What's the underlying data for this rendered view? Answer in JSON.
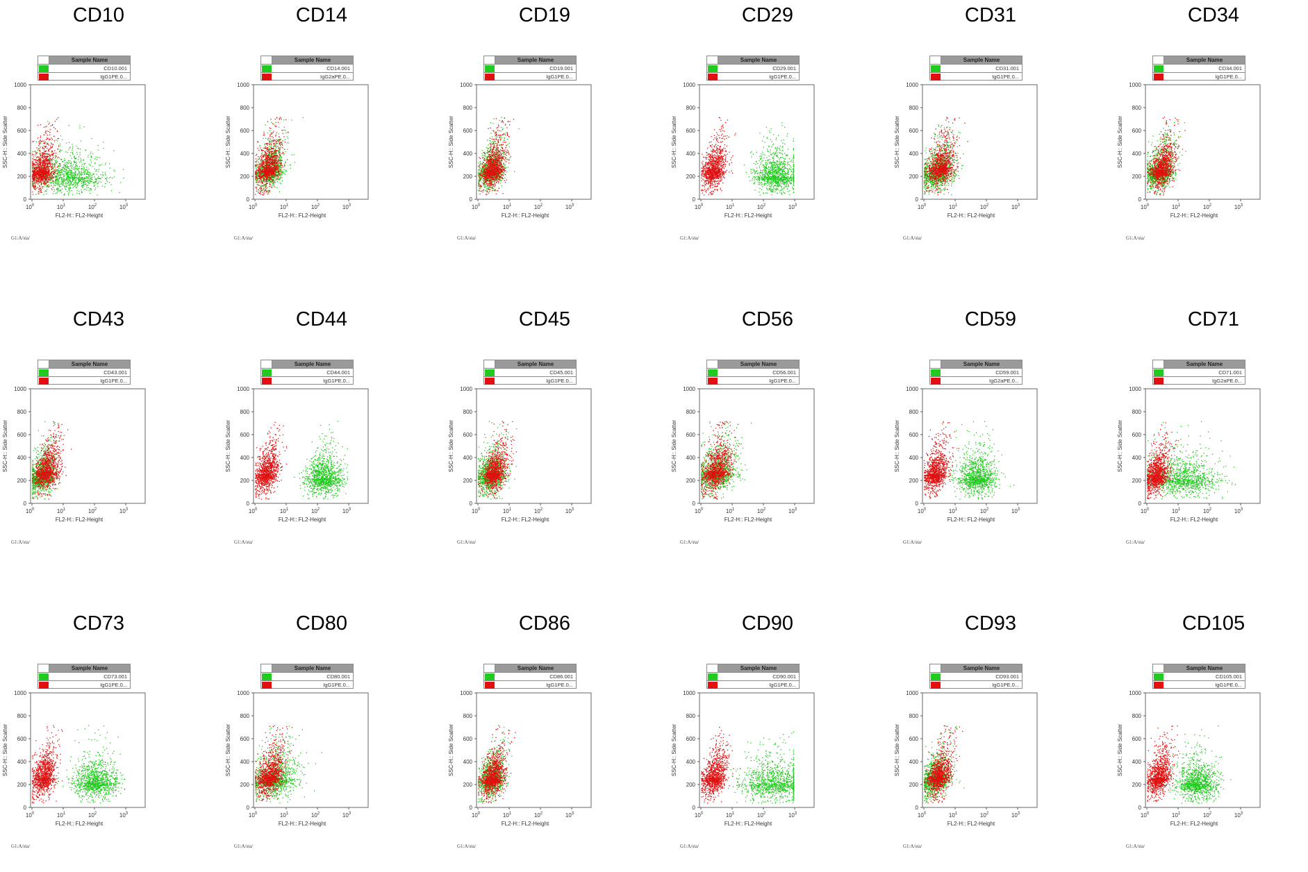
{
  "colors": {
    "positive": "#22c91e",
    "isotype": "#e01010"
  },
  "common": {
    "legend_header": "Sample Name",
    "xlabel": "FL2-H:: FL2-Height",
    "ylabel": "SSC-H:: Side Scatter",
    "y_ticks": [
      "0",
      "200",
      "400",
      "600",
      "800",
      "1000"
    ],
    "x_ticks": [
      "10",
      "10",
      "10",
      "10"
    ],
    "x_tick_exponents": [
      "0",
      "1",
      "2",
      "3"
    ],
    "footer": "G1:A/sta/"
  },
  "chart_data": [
    {
      "type": "scatter",
      "title": "CD10",
      "ylim": [
        0,
        1000
      ],
      "xscale": "log",
      "xlim": [
        1,
        1000
      ],
      "series": [
        {
          "name": "CD10.001",
          "color": "#22c91e",
          "center_log10": [
            1.1,
            200
          ],
          "spread": [
            0.6,
            120
          ],
          "expressed": true
        },
        {
          "name": "IgG1PE.0...",
          "color": "#e01010",
          "center_log10": [
            0.3,
            250
          ],
          "spread": [
            0.18,
            130
          ],
          "expressed": false
        }
      ]
    },
    {
      "type": "scatter",
      "title": "CD14",
      "ylim": [
        0,
        1000
      ],
      "xscale": "log",
      "xlim": [
        1,
        1000
      ],
      "series": [
        {
          "name": "CD14.001",
          "color": "#22c91e",
          "center_log10": [
            0.45,
            250
          ],
          "spread": [
            0.22,
            120
          ],
          "expressed": false
        },
        {
          "name": "IgG2aPE.0...",
          "color": "#e01010",
          "center_log10": [
            0.4,
            260
          ],
          "spread": [
            0.18,
            130
          ],
          "expressed": false
        }
      ]
    },
    {
      "type": "scatter",
      "title": "CD19",
      "ylim": [
        0,
        1000
      ],
      "xscale": "log",
      "xlim": [
        1,
        1000
      ],
      "series": [
        {
          "name": "CD19.001",
          "color": "#22c91e",
          "center_log10": [
            0.4,
            250
          ],
          "spread": [
            0.2,
            120
          ],
          "expressed": false
        },
        {
          "name": "IgG1PE.0...",
          "color": "#e01010",
          "center_log10": [
            0.45,
            260
          ],
          "spread": [
            0.18,
            130
          ],
          "expressed": false
        }
      ]
    },
    {
      "type": "scatter",
      "title": "CD29",
      "ylim": [
        0,
        1000
      ],
      "xscale": "log",
      "xlim": [
        1,
        1000
      ],
      "series": [
        {
          "name": "CD29.001",
          "color": "#22c91e",
          "center_log10": [
            2.4,
            200
          ],
          "spread": [
            0.35,
            120
          ],
          "expressed": true
        },
        {
          "name": "IgG1PE.0...",
          "color": "#e01010",
          "center_log10": [
            0.4,
            260
          ],
          "spread": [
            0.18,
            130
          ],
          "expressed": false
        }
      ]
    },
    {
      "type": "scatter",
      "title": "CD31",
      "ylim": [
        0,
        1000
      ],
      "xscale": "log",
      "xlim": [
        1,
        1000
      ],
      "series": [
        {
          "name": "CD31.001",
          "color": "#22c91e",
          "center_log10": [
            0.45,
            230
          ],
          "spread": [
            0.25,
            120
          ],
          "expressed": false
        },
        {
          "name": "IgG1PE.0...",
          "color": "#e01010",
          "center_log10": [
            0.5,
            280
          ],
          "spread": [
            0.2,
            140
          ],
          "expressed": false
        }
      ]
    },
    {
      "type": "scatter",
      "title": "CD34",
      "ylim": [
        0,
        1000
      ],
      "xscale": "log",
      "xlim": [
        1,
        1000
      ],
      "series": [
        {
          "name": "CD34.001",
          "color": "#22c91e",
          "center_log10": [
            0.4,
            240
          ],
          "spread": [
            0.22,
            120
          ],
          "expressed": false
        },
        {
          "name": "IgG1PE.0...",
          "color": "#e01010",
          "center_log10": [
            0.45,
            260
          ],
          "spread": [
            0.18,
            130
          ],
          "expressed": false
        }
      ]
    },
    {
      "type": "scatter",
      "title": "CD43",
      "ylim": [
        0,
        1000
      ],
      "xscale": "log",
      "xlim": [
        1,
        1000
      ],
      "series": [
        {
          "name": "CD43.001",
          "color": "#22c91e",
          "center_log10": [
            0.3,
            230
          ],
          "spread": [
            0.2,
            120
          ],
          "expressed": false
        },
        {
          "name": "IgG1PE.0...",
          "color": "#e01010",
          "center_log10": [
            0.45,
            280
          ],
          "spread": [
            0.18,
            130
          ],
          "expressed": false
        }
      ]
    },
    {
      "type": "scatter",
      "title": "CD44",
      "ylim": [
        0,
        1000
      ],
      "xscale": "log",
      "xlim": [
        1,
        1000
      ],
      "series": [
        {
          "name": "CD44.001",
          "color": "#22c91e",
          "center_log10": [
            2.2,
            220
          ],
          "spread": [
            0.3,
            120
          ],
          "expressed": true
        },
        {
          "name": "IgG1PE.0...",
          "color": "#e01010",
          "center_log10": [
            0.35,
            260
          ],
          "spread": [
            0.18,
            130
          ],
          "expressed": false
        }
      ]
    },
    {
      "type": "scatter",
      "title": "CD45",
      "ylim": [
        0,
        1000
      ],
      "xscale": "log",
      "xlim": [
        1,
        1000
      ],
      "series": [
        {
          "name": "CD45.001",
          "color": "#22c91e",
          "center_log10": [
            0.4,
            240
          ],
          "spread": [
            0.22,
            120
          ],
          "expressed": false
        },
        {
          "name": "IgG1PE.0...",
          "color": "#e01010",
          "center_log10": [
            0.5,
            270
          ],
          "spread": [
            0.18,
            130
          ],
          "expressed": false
        }
      ]
    },
    {
      "type": "scatter",
      "title": "CD56",
      "ylim": [
        0,
        1000
      ],
      "xscale": "log",
      "xlim": [
        1,
        1000
      ],
      "series": [
        {
          "name": "CD56.001",
          "color": "#22c91e",
          "center_log10": [
            0.5,
            260
          ],
          "spread": [
            0.3,
            130
          ],
          "expressed": false
        },
        {
          "name": "IgG1PE.0...",
          "color": "#e01010",
          "center_log10": [
            0.45,
            280
          ],
          "spread": [
            0.2,
            140
          ],
          "expressed": false
        }
      ]
    },
    {
      "type": "scatter",
      "title": "CD59",
      "ylim": [
        0,
        1000
      ],
      "xscale": "log",
      "xlim": [
        1,
        1000
      ],
      "series": [
        {
          "name": "CD59.001",
          "color": "#22c91e",
          "center_log10": [
            1.7,
            220
          ],
          "spread": [
            0.32,
            120
          ],
          "expressed": true
        },
        {
          "name": "IgG2aPE.0...",
          "color": "#e01010",
          "center_log10": [
            0.35,
            260
          ],
          "spread": [
            0.18,
            130
          ],
          "expressed": false
        }
      ]
    },
    {
      "type": "scatter",
      "title": "CD71",
      "ylim": [
        0,
        1000
      ],
      "xscale": "log",
      "xlim": [
        1,
        1000
      ],
      "series": [
        {
          "name": "CD71.001",
          "color": "#22c91e",
          "center_log10": [
            1.15,
            210
          ],
          "spread": [
            0.55,
            120
          ],
          "expressed": true
        },
        {
          "name": "IgG2aPE.0...",
          "color": "#e01010",
          "center_log10": [
            0.3,
            250
          ],
          "spread": [
            0.18,
            130
          ],
          "expressed": false
        }
      ]
    },
    {
      "type": "scatter",
      "title": "CD73",
      "ylim": [
        0,
        1000
      ],
      "xscale": "log",
      "xlim": [
        1,
        1000
      ],
      "series": [
        {
          "name": "CD73.001",
          "color": "#22c91e",
          "center_log10": [
            2.0,
            220
          ],
          "spread": [
            0.35,
            120
          ],
          "expressed": true
        },
        {
          "name": "IgG1PE.0...",
          "color": "#e01010",
          "center_log10": [
            0.35,
            260
          ],
          "spread": [
            0.18,
            130
          ],
          "expressed": false
        }
      ]
    },
    {
      "type": "scatter",
      "title": "CD80",
      "ylim": [
        0,
        1000
      ],
      "xscale": "log",
      "xlim": [
        1,
        1000
      ],
      "series": [
        {
          "name": "CD80.001",
          "color": "#22c91e",
          "center_log10": [
            0.6,
            250
          ],
          "spread": [
            0.35,
            130
          ],
          "expressed": false
        },
        {
          "name": "IgG1PE.0...",
          "color": "#e01010",
          "center_log10": [
            0.45,
            270
          ],
          "spread": [
            0.2,
            140
          ],
          "expressed": false
        }
      ]
    },
    {
      "type": "scatter",
      "title": "CD86",
      "ylim": [
        0,
        1000
      ],
      "xscale": "log",
      "xlim": [
        1,
        1000
      ],
      "series": [
        {
          "name": "CD86.001",
          "color": "#22c91e",
          "center_log10": [
            0.4,
            240
          ],
          "spread": [
            0.2,
            120
          ],
          "expressed": false
        },
        {
          "name": "IgG1PE.0...",
          "color": "#e01010",
          "center_log10": [
            0.45,
            260
          ],
          "spread": [
            0.18,
            130
          ],
          "expressed": false
        }
      ]
    },
    {
      "type": "scatter",
      "title": "CD90",
      "ylim": [
        0,
        1000
      ],
      "xscale": "log",
      "xlim": [
        1,
        1000
      ],
      "series": [
        {
          "name": "CD90.001",
          "color": "#22c91e",
          "center_log10": [
            2.3,
            210
          ],
          "spread": [
            0.55,
            120
          ],
          "expressed": true
        },
        {
          "name": "IgG1PE.0...",
          "color": "#e01010",
          "center_log10": [
            0.4,
            260
          ],
          "spread": [
            0.18,
            130
          ],
          "expressed": false
        }
      ]
    },
    {
      "type": "scatter",
      "title": "CD93",
      "ylim": [
        0,
        1000
      ],
      "xscale": "log",
      "xlim": [
        1,
        1000
      ],
      "series": [
        {
          "name": "CD93.001",
          "color": "#22c91e",
          "center_log10": [
            0.35,
            240
          ],
          "spread": [
            0.22,
            120
          ],
          "expressed": false
        },
        {
          "name": "IgG1PE.0...",
          "color": "#e01010",
          "center_log10": [
            0.45,
            270
          ],
          "spread": [
            0.18,
            130
          ],
          "expressed": false
        }
      ]
    },
    {
      "type": "scatter",
      "title": "CD105",
      "ylim": [
        0,
        1000
      ],
      "xscale": "log",
      "xlim": [
        1,
        1000
      ],
      "series": [
        {
          "name": "CD105.001",
          "color": "#22c91e",
          "center_log10": [
            1.6,
            210
          ],
          "spread": [
            0.32,
            120
          ],
          "expressed": true
        },
        {
          "name": "IgG1PE.0...",
          "color": "#e01010",
          "center_log10": [
            0.35,
            260
          ],
          "spread": [
            0.18,
            130
          ],
          "expressed": false
        }
      ]
    }
  ]
}
